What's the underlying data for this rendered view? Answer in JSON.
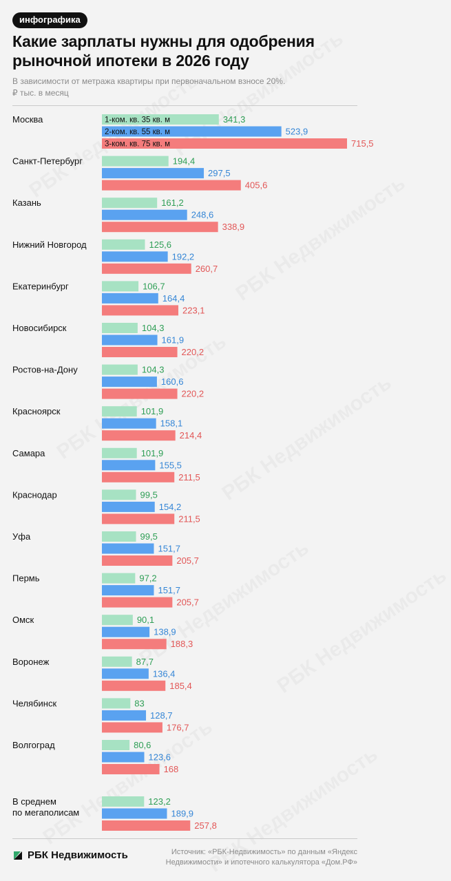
{
  "header": {
    "tag": "инфографика",
    "title": "Какие зарплаты нужны для одобрения рыночной ипотеки в 2026 году",
    "subtitle_line1": "В зависимости от метража квартиры при первоначальном взносе 20%.",
    "subtitle_line2": "₽ тыс. в месяц"
  },
  "footer": {
    "logo": "РБК Недвижимость",
    "source_line1": "Источник: «РБК-Недвижимость» по данным «Яндекс",
    "source_line2": "Недвижимости» и ипотечного калькулятора «Дом.РФ»"
  },
  "watermark": "РБК Недвижимость",
  "colors": {
    "series1": "#a7e2c3",
    "series2": "#5aa2f0",
    "series3": "#f47c7c",
    "label1": "#2e9e55",
    "label2": "#3586d6",
    "label3": "#e25656"
  },
  "chart_data": {
    "type": "bar",
    "orientation": "horizontal",
    "title": "Какие зарплаты нужны для одобрения рыночной ипотеки в 2026 году",
    "unit": "₽ тыс. в месяц",
    "categories": [
      [
        "Москва"
      ],
      [
        "Санкт-Петербург"
      ],
      [
        "Казань"
      ],
      [
        "Нижний Новгород"
      ],
      [
        "Екатеринбург"
      ],
      [
        "Новосибирск"
      ],
      [
        "Ростов-на-Дону"
      ],
      [
        "Красноярск"
      ],
      [
        "Самара"
      ],
      [
        "Краснодар"
      ],
      [
        "Уфа"
      ],
      [
        "Пермь"
      ],
      [
        "Омск"
      ],
      [
        "Воронеж"
      ],
      [
        "Челябинск"
      ],
      [
        "Волгоград"
      ],
      [
        "В среднем",
        "по мегаполисам"
      ]
    ],
    "series": [
      {
        "name": "1-ком. кв. 35 кв. м",
        "values": [
          341.3,
          194.4,
          161.2,
          125.6,
          106.7,
          104.3,
          104.3,
          101.9,
          101.9,
          99.5,
          99.5,
          97.2,
          90.1,
          87.7,
          83,
          80.6,
          123.2
        ],
        "labels": [
          "341,3",
          "194,4",
          "161,2",
          "125,6",
          "106,7",
          "104,3",
          "104,3",
          "101,9",
          "101,9",
          "99,5",
          "99,5",
          "97,2",
          "90,1",
          "87,7",
          "83",
          "80,6",
          "123,2"
        ]
      },
      {
        "name": "2-ком. кв. 55 кв. м",
        "values": [
          523.9,
          297.5,
          248.6,
          192.2,
          164.4,
          161.9,
          160.6,
          158.1,
          155.5,
          154.2,
          151.7,
          151.7,
          138.9,
          136.4,
          128.7,
          123.6,
          189.9
        ],
        "labels": [
          "523,9",
          "297,5",
          "248,6",
          "192,2",
          "164,4",
          "161,9",
          "160,6",
          "158,1",
          "155,5",
          "154,2",
          "151,7",
          "151,7",
          "138,9",
          "136,4",
          "128,7",
          "123,6",
          "189,9"
        ]
      },
      {
        "name": "3-ком. кв. 75 кв. м",
        "values": [
          715.5,
          405.6,
          338.9,
          260.7,
          223.1,
          220.2,
          220.2,
          214.4,
          211.5,
          211.5,
          205.7,
          205.7,
          188.3,
          185.4,
          176.7,
          168,
          257.8
        ],
        "labels": [
          "715,5",
          "405,6",
          "338,9",
          "260,7",
          "223,1",
          "220,2",
          "220,2",
          "214,4",
          "211,5",
          "211,5",
          "205,7",
          "205,7",
          "188,3",
          "185,4",
          "176,7",
          "168",
          "257,8"
        ]
      }
    ]
  }
}
